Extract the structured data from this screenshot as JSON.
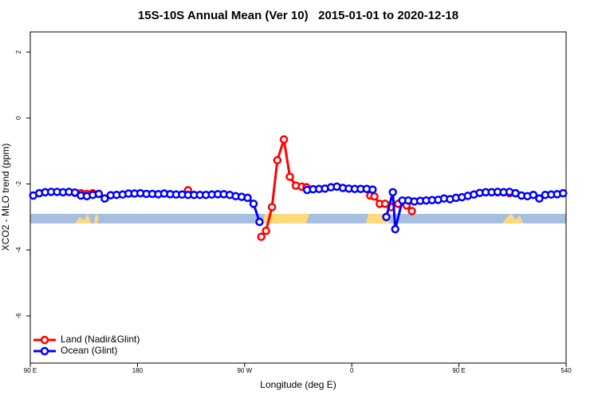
{
  "chart_data": {
    "type": "line",
    "title": "15S-10S Annual Mean (Ver 10)   2015-01-01 to 2020-12-18",
    "xlabel": "Longitude (deg E)",
    "ylabel": "XCO2 - MLO trend (ppm)",
    "xlim": [
      90,
      540
    ],
    "ylim": [
      -7.43,
      2.61
    ],
    "xticks": [
      {
        "value": 90,
        "label": "90 E"
      },
      180,
      {
        "value": 270,
        "label": "90 W"
      },
      {
        "value": 360,
        "label": "0"
      },
      {
        "value": 450,
        "label": "90 E"
      },
      540
    ],
    "yticks": [
      2,
      0,
      -2,
      -4,
      -6
    ],
    "legend": "bottom-left",
    "series": [
      {
        "name": "Land (Nadir&Glint)",
        "color": "#ff0000",
        "x": [
          127.5,
          132.5,
          137.5,
          142.5,
          null,
          222.5,
          null,
          284,
          288,
          293,
          297.5,
          303,
          308,
          313,
          318,
          322,
          null,
          375.5,
          379,
          383.5,
          388,
          393,
          399,
          406,
          410.5,
          null,
          482.5,
          487.5,
          492.5,
          497.5
        ],
        "values": [
          -2.27,
          -2.28,
          -2.3,
          -2.28,
          null,
          -2.19,
          null,
          -3.6,
          -3.42,
          -2.7,
          -1.28,
          -0.65,
          -1.78,
          -2.05,
          -2.08,
          -2.1,
          null,
          -2.35,
          -2.38,
          -2.6,
          -2.6,
          -2.7,
          -2.6,
          -2.65,
          -2.82,
          null,
          -2.25,
          -2.25,
          -2.28,
          -2.28
        ]
      },
      {
        "name": "Ocean (Glint)",
        "color": "#0000ff",
        "x": [
          92.5,
          97.5,
          102.5,
          107.5,
          112.5,
          117.5,
          122.5,
          127.5,
          132.5,
          137.5,
          142.5,
          147.5,
          152.5,
          157.5,
          162.5,
          167.5,
          172.5,
          177.5,
          182.5,
          187.5,
          192.5,
          197.5,
          202.5,
          207.5,
          212.5,
          217.5,
          222.5,
          227.5,
          232.5,
          237.5,
          242.5,
          247.5,
          252.5,
          257.5,
          262.5,
          267.5,
          272.5,
          277.5,
          282.5,
          null,
          322.5,
          327.5,
          332.5,
          337.5,
          342.5,
          347.5,
          352.5,
          357.5,
          362.5,
          367.5,
          372.5,
          377.5,
          null,
          389,
          394.5,
          396.5,
          402.5,
          407.5,
          412.5,
          417.5,
          422.5,
          427.5,
          432.5,
          437.5,
          442.5,
          447.5,
          452.5,
          457.5,
          462.5,
          467.5,
          472.5,
          477.5,
          482.5,
          487.5,
          492.5,
          497.5,
          502.5,
          507.5,
          512.5,
          517.5,
          522.5,
          527.5,
          532.5,
          537.5
        ],
        "values": [
          -2.35,
          -2.28,
          -2.25,
          -2.24,
          -2.24,
          -2.25,
          -2.24,
          -2.26,
          -2.35,
          -2.37,
          -2.33,
          -2.3,
          -2.44,
          -2.34,
          -2.33,
          -2.32,
          -2.29,
          -2.29,
          -2.28,
          -2.3,
          -2.3,
          -2.31,
          -2.29,
          -2.31,
          -2.32,
          -2.32,
          -2.33,
          -2.33,
          -2.33,
          -2.33,
          -2.32,
          -2.31,
          -2.31,
          -2.33,
          -2.37,
          -2.39,
          -2.42,
          -2.6,
          -3.15,
          null,
          -2.18,
          -2.16,
          -2.15,
          -2.14,
          -2.1,
          -2.08,
          -2.12,
          -2.14,
          -2.15,
          -2.15,
          -2.15,
          -2.17,
          null,
          -3.0,
          -2.25,
          -3.37,
          -2.5,
          -2.5,
          -2.53,
          -2.51,
          -2.5,
          -2.49,
          -2.48,
          -2.44,
          -2.46,
          -2.42,
          -2.4,
          -2.36,
          -2.32,
          -2.27,
          -2.25,
          -2.25,
          -2.24,
          -2.25,
          -2.24,
          -2.28,
          -2.35,
          -2.37,
          -2.33,
          -2.44,
          -2.33,
          -2.32,
          -2.31,
          -2.28
        ]
      }
    ]
  }
}
